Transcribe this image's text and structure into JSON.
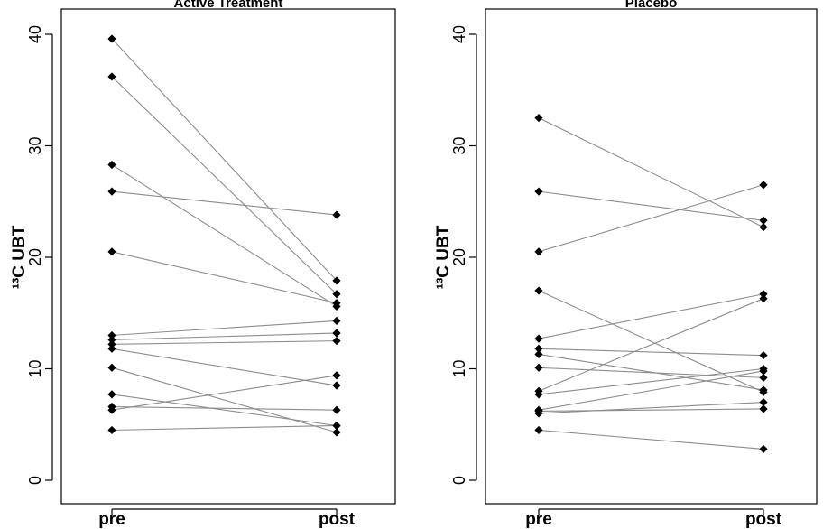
{
  "chart_data": [
    {
      "type": "line",
      "title": "Active Treatment",
      "ylabel": "¹³C UBT",
      "categories": [
        "pre",
        "post"
      ],
      "ylim": [
        0,
        40
      ],
      "yticks": [
        0,
        10,
        20,
        30,
        40
      ],
      "grid": false,
      "marker": "diamond",
      "pairs": [
        {
          "pre": 39.6,
          "post": 17.9
        },
        {
          "pre": 36.2,
          "post": 16.7
        },
        {
          "pre": 28.3,
          "post": 15.6
        },
        {
          "pre": 25.9,
          "post": 23.8
        },
        {
          "pre": 20.5,
          "post": 15.9
        },
        {
          "pre": 13.0,
          "post": 14.3
        },
        {
          "pre": 12.6,
          "post": 13.2
        },
        {
          "pre": 12.2,
          "post": 12.5
        },
        {
          "pre": 11.8,
          "post": 8.5
        },
        {
          "pre": 10.1,
          "post": 4.3
        },
        {
          "pre": 7.7,
          "post": 4.9
        },
        {
          "pre": 6.6,
          "post": 6.3
        },
        {
          "pre": 6.3,
          "post": 9.4
        },
        {
          "pre": 4.5,
          "post": 4.9
        }
      ]
    },
    {
      "type": "line",
      "title": "Placebo",
      "ylabel": "¹³C UBT",
      "categories": [
        "pre",
        "post"
      ],
      "ylim": [
        0,
        40
      ],
      "yticks": [
        0,
        10,
        20,
        30,
        40
      ],
      "grid": false,
      "marker": "diamond",
      "pairs": [
        {
          "pre": 32.5,
          "post": 22.7
        },
        {
          "pre": 25.9,
          "post": 23.3
        },
        {
          "pre": 20.5,
          "post": 26.5
        },
        {
          "pre": 17.0,
          "post": 7.9
        },
        {
          "pre": 12.7,
          "post": 16.7
        },
        {
          "pre": 11.8,
          "post": 11.2
        },
        {
          "pre": 11.3,
          "post": 8.1
        },
        {
          "pre": 10.1,
          "post": 9.2
        },
        {
          "pre": 8.0,
          "post": 16.3
        },
        {
          "pre": 7.7,
          "post": 10.0
        },
        {
          "pre": 6.3,
          "post": 9.8
        },
        {
          "pre": 6.2,
          "post": 6.4
        },
        {
          "pre": 6.0,
          "post": 7.0
        },
        {
          "pre": 4.5,
          "post": 2.8
        }
      ]
    }
  ]
}
